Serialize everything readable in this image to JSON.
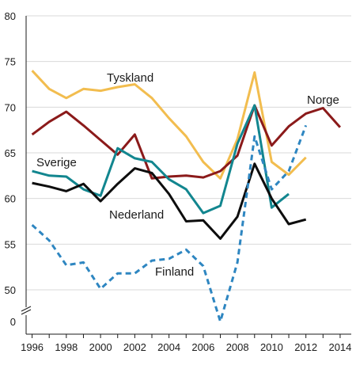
{
  "chart_data": {
    "type": "line",
    "x": [
      1996,
      1997,
      1998,
      1999,
      2000,
      2001,
      2002,
      2003,
      2004,
      2005,
      2006,
      2007,
      2008,
      2009,
      2010,
      2011,
      2012,
      2013,
      2014
    ],
    "xticks": [
      1996,
      1998,
      2000,
      2002,
      2004,
      2006,
      2008,
      2010,
      2012,
      2014
    ],
    "yticks": [
      0,
      50,
      55,
      60,
      65,
      70,
      75,
      80
    ],
    "ylim": [
      0,
      80
    ],
    "axis_break": "between 0 and 50",
    "grid": "horizontal",
    "series": [
      {
        "name": "Tyskland",
        "color": "#f2bd4f",
        "dash": false,
        "values": [
          74.0,
          72.0,
          71.0,
          72.0,
          71.8,
          72.2,
          72.5,
          71.0,
          68.8,
          66.8,
          64.0,
          62.2,
          66.5,
          73.8,
          64.0,
          62.6,
          64.5,
          null,
          null
        ]
      },
      {
        "name": "Norge",
        "color": "#8b1a1a",
        "dash": false,
        "values": [
          67.0,
          68.4,
          69.5,
          68.0,
          66.4,
          64.8,
          67.0,
          62.2,
          62.4,
          62.5,
          62.3,
          63.0,
          64.7,
          70.2,
          65.8,
          67.9,
          69.3,
          69.9,
          67.8
        ]
      },
      {
        "name": "Sverige",
        "color": "#12868f",
        "dash": false,
        "values": [
          63.0,
          62.5,
          62.4,
          61.0,
          60.3,
          65.5,
          64.4,
          64.0,
          62.1,
          61.0,
          58.4,
          59.2,
          66.0,
          70.2,
          59.0,
          60.5,
          null,
          null,
          null
        ]
      },
      {
        "name": "Nederland",
        "color": "#0d0d0d",
        "dash": false,
        "values": [
          61.7,
          61.3,
          60.8,
          61.6,
          59.7,
          61.6,
          63.3,
          62.8,
          60.5,
          57.5,
          57.6,
          55.6,
          58.0,
          63.8,
          60.0,
          57.2,
          57.7,
          null,
          null
        ]
      },
      {
        "name": "Finland",
        "color": "#2e86c1",
        "dash": true,
        "values": [
          57.1,
          55.4,
          52.7,
          53.0,
          50.1,
          51.8,
          51.8,
          53.2,
          53.4,
          54.4,
          52.6,
          49.7,
          53.0,
          66.8,
          61.0,
          63.0,
          68.0,
          null,
          null
        ]
      }
    ],
    "labels": [
      {
        "text": "Tyskland",
        "series": 0
      },
      {
        "text": "Norge",
        "series": 1
      },
      {
        "text": "Sverige",
        "series": 2
      },
      {
        "text": "Nederland",
        "series": 3
      },
      {
        "text": "Finland",
        "series": 4
      }
    ]
  }
}
